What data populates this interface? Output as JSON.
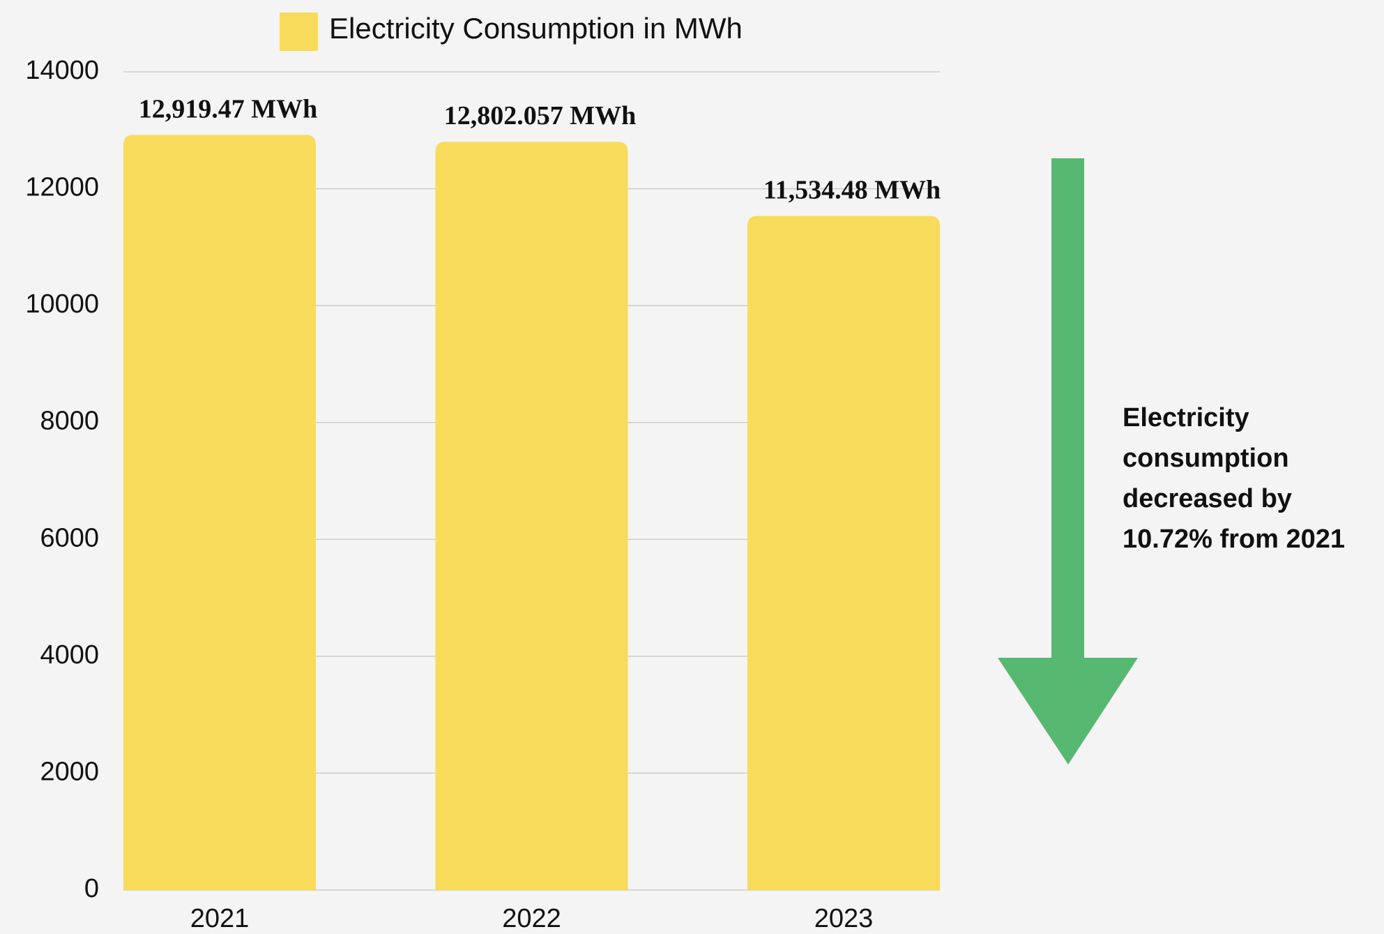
{
  "chart_data": {
    "type": "bar",
    "legend": "Electricity Consumption in MWh",
    "categories": [
      "2021",
      "2022",
      "2023"
    ],
    "values": [
      12919.47,
      12802.057,
      11534.48
    ],
    "value_labels": [
      "12,919.47 MWh",
      "12,802.057 MWh",
      "11,534.48 MWh"
    ],
    "color": "#f9db5c",
    "ylim": [
      0,
      14000
    ],
    "yticks": [
      0,
      2000,
      4000,
      6000,
      8000,
      10000,
      12000,
      14000
    ],
    "grid": true,
    "annotation": [
      "Electricity",
      "consumption",
      "decreased by",
      "10.72% from 2021"
    ],
    "arrow_color": "#57b872"
  }
}
